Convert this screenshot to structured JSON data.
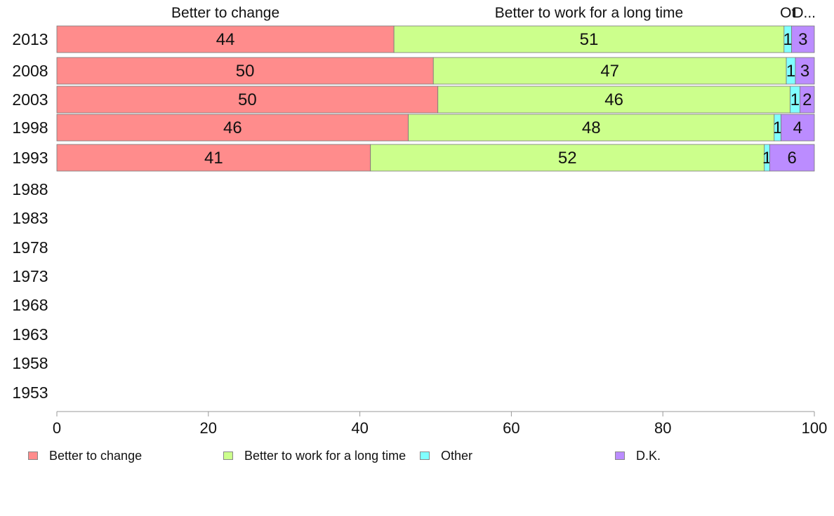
{
  "chart_data": {
    "type": "bar",
    "orientation": "horizontal",
    "stacked": true,
    "categories": [
      "2013",
      "2008",
      "2003",
      "1998",
      "1993",
      "1988",
      "1983",
      "1978",
      "1973",
      "1968",
      "1963",
      "1958",
      "1953"
    ],
    "series": [
      {
        "name": "Better to change",
        "color": "#ff8c8c",
        "values": [
          44.5,
          49.7,
          50.3,
          46.4,
          41.4,
          null,
          null,
          null,
          null,
          null,
          null,
          null,
          null
        ],
        "labels": [
          "44",
          "50",
          "50",
          "46",
          "41",
          "",
          "",
          "",
          "",
          "",
          "",
          "",
          ""
        ]
      },
      {
        "name": "Better to work for a long time",
        "color": "#ccff8c",
        "values": [
          51.5,
          46.6,
          46.5,
          48.3,
          52.0,
          null,
          null,
          null,
          null,
          null,
          null,
          null,
          null
        ],
        "labels": [
          "51",
          "47",
          "46",
          "48",
          "52",
          "",
          "",
          "",
          "",
          "",
          "",
          "",
          ""
        ]
      },
      {
        "name": "Other",
        "color": "#80ffff",
        "values": [
          1.0,
          1.2,
          1.3,
          0.9,
          0.7,
          null,
          null,
          null,
          null,
          null,
          null,
          null,
          null
        ],
        "labels": [
          "1",
          "1",
          "1",
          "1",
          "1",
          "",
          "",
          "",
          "",
          "",
          "",
          "",
          ""
        ]
      },
      {
        "name": "D.K.",
        "color": "#bb8cff",
        "values": [
          3.0,
          2.5,
          1.9,
          4.4,
          5.9,
          null,
          null,
          null,
          null,
          null,
          null,
          null,
          null
        ],
        "labels": [
          "3",
          "3",
          "2",
          "4",
          "6",
          "",
          "",
          "",
          "",
          "",
          "",
          "",
          ""
        ]
      }
    ],
    "column_headers": [
      "Better to change",
      "Better to work for a long time",
      "Ot",
      "D..."
    ],
    "x_ticks": [
      "0",
      "20",
      "40",
      "60",
      "80",
      "100"
    ],
    "xlim": [
      0,
      100
    ],
    "grid": false,
    "legend_position": "bottom"
  }
}
